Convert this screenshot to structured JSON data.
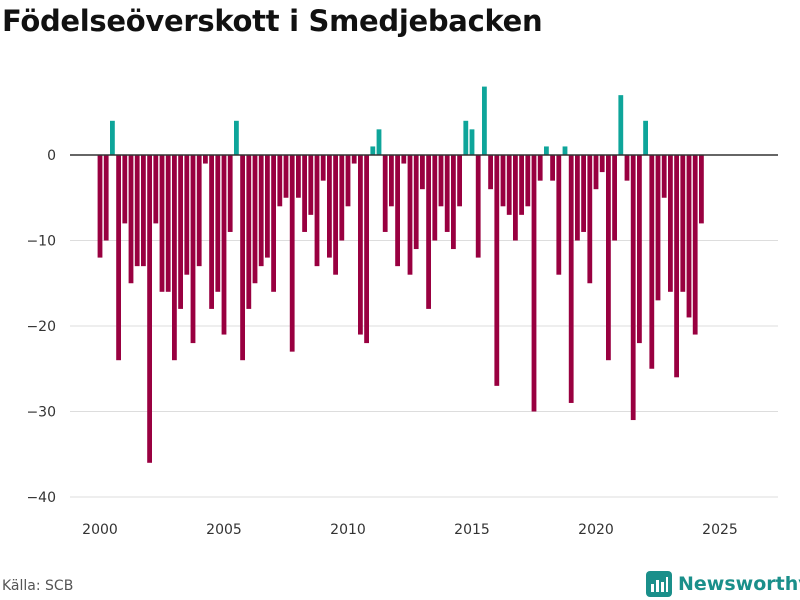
{
  "colors": {
    "positive": "#0ea59a",
    "negative": "#990040",
    "zero_line": "#333333",
    "grid": "#dddddd",
    "brand": "#1a8f8a"
  },
  "brand": {
    "name": "Newsworthy",
    "icon": "newsworthy-logo-icon"
  },
  "source": "Källa: SCB",
  "chart_data": {
    "type": "bar",
    "title": "Födelseöverskott i Smedjebacken",
    "xlabel": "",
    "ylabel": "",
    "ylim": [
      -40,
      10
    ],
    "yticks": [
      0,
      -10,
      -20,
      -30,
      -40
    ],
    "ytick_labels": [
      "0",
      "−10",
      "−20",
      "−30",
      "−40"
    ],
    "xticks": [
      2000,
      2005,
      2010,
      2015,
      2020,
      2025
    ],
    "xtick_labels": [
      "2000",
      "2005",
      "2010",
      "2015",
      "2020",
      "2025"
    ],
    "x_range": [
      2000,
      2027.2
    ],
    "frequency": "monthly",
    "start": "2000-01",
    "values": [
      -12,
      -10,
      4,
      -24,
      -8,
      -15,
      -13,
      -13,
      -36,
      -8,
      -16,
      -16,
      -24,
      -18,
      -14,
      -22,
      -13,
      -1,
      -18,
      -16,
      -21,
      -9,
      4,
      -24,
      -18,
      -15,
      -13,
      -12,
      -16,
      -6,
      -5,
      -23,
      -5,
      -9,
      -7,
      -13,
      -3,
      -12,
      -14,
      -10,
      -6,
      -1,
      -21,
      -22,
      1,
      3,
      -9,
      -6,
      -13,
      -1,
      -14,
      -11,
      -4,
      -18,
      -10,
      -6,
      -9,
      -11,
      -6,
      4,
      3,
      -12,
      8,
      -4,
      -27,
      -6,
      -7,
      -10,
      -7,
      -6,
      -30,
      -3,
      1,
      -3,
      -14,
      1,
      -29,
      -10,
      -9,
      -15,
      -4,
      -2,
      -24,
      -10,
      7,
      -3,
      -31,
      -22,
      4,
      -25,
      -17,
      -5,
      -16,
      -26,
      -16,
      -19,
      -21,
      -8
    ]
  }
}
